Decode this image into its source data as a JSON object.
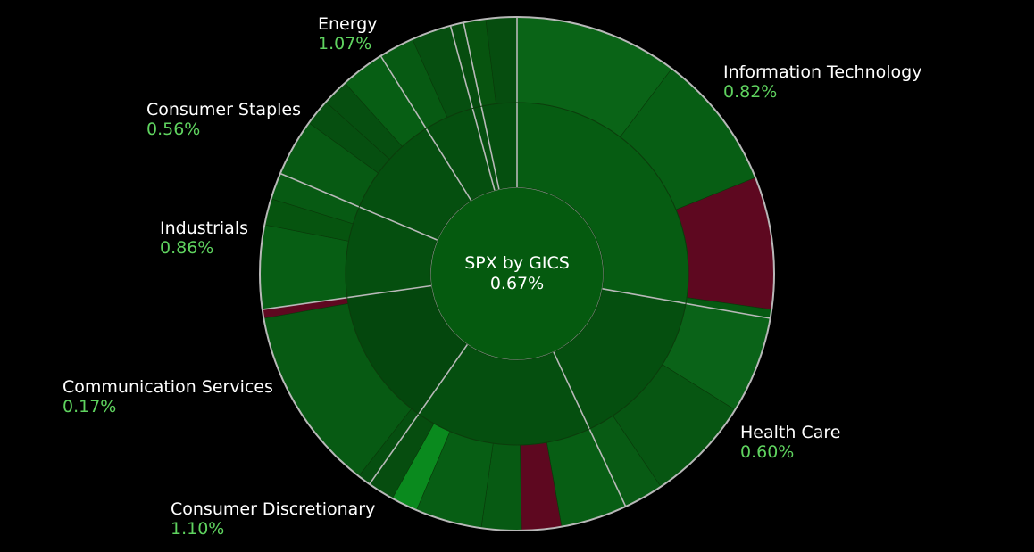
{
  "chart_data": {
    "type": "sunburst",
    "center": {
      "title": "SPX by GICS",
      "value": "0.67%"
    },
    "colors": {
      "background": "#000000",
      "divider": "#b8b8b8",
      "label_text": "#ffffff",
      "positive_text": "#5fd35f",
      "center_fill": "#055a0f",
      "negative_fill": "#5e0820",
      "strong_positive_fill": "#0a8a1e"
    },
    "sectors": [
      {
        "name": "Information Technology",
        "change": "0.82%",
        "start_deg": 0,
        "end_deg": 100,
        "color": "#065c12",
        "children": [
          {
            "start_deg": 0,
            "end_deg": 37,
            "color": "#0a6417"
          },
          {
            "start_deg": 37,
            "end_deg": 68,
            "color": "#075e14"
          },
          {
            "start_deg": 68,
            "end_deg": 98,
            "color": "#5e0820"
          },
          {
            "start_deg": 98,
            "end_deg": 100,
            "color": "#065a12"
          }
        ]
      },
      {
        "name": "Health Care",
        "change": "0.60%",
        "start_deg": 100,
        "end_deg": 155,
        "color": "#054f0f",
        "children": [
          {
            "start_deg": 100,
            "end_deg": 122,
            "color": "#0a6318"
          },
          {
            "start_deg": 122,
            "end_deg": 146,
            "color": "#075612"
          },
          {
            "start_deg": 146,
            "end_deg": 155,
            "color": "#085b14"
          }
        ]
      },
      {
        "name": "Consumer Discretionary",
        "change": "1.10%",
        "start_deg": 155,
        "end_deg": 215,
        "color": "#054f0f",
        "children": [
          {
            "start_deg": 155,
            "end_deg": 170,
            "color": "#075e14"
          },
          {
            "start_deg": 170,
            "end_deg": 179,
            "color": "#5e0820"
          },
          {
            "start_deg": 179,
            "end_deg": 188,
            "color": "#075a13"
          },
          {
            "start_deg": 188,
            "end_deg": 203,
            "color": "#075e14"
          },
          {
            "start_deg": 203,
            "end_deg": 209,
            "color": "#0a8a1e"
          },
          {
            "start_deg": 209,
            "end_deg": 215,
            "color": "#064d0f"
          }
        ]
      },
      {
        "name": "Communication Services",
        "change": "0.17%",
        "start_deg": 215,
        "end_deg": 262,
        "color": "#04470d",
        "children": [
          {
            "start_deg": 215,
            "end_deg": 218,
            "color": "#064f10"
          },
          {
            "start_deg": 218,
            "end_deg": 260,
            "color": "#075a13"
          },
          {
            "start_deg": 260,
            "end_deg": 262,
            "color": "#5e0820"
          }
        ]
      },
      {
        "name": "Industrials",
        "change": "0.86%",
        "start_deg": 262,
        "end_deg": 293,
        "color": "#054f0f",
        "children": [
          {
            "start_deg": 262,
            "end_deg": 281,
            "color": "#075e14"
          },
          {
            "start_deg": 281,
            "end_deg": 287,
            "color": "#06540f"
          },
          {
            "start_deg": 287,
            "end_deg": 293,
            "color": "#075a13"
          }
        ]
      },
      {
        "name": "Consumer Staples",
        "change": "0.56%",
        "start_deg": 293,
        "end_deg": 328,
        "color": "#054f0f",
        "children": [
          {
            "start_deg": 293,
            "end_deg": 306,
            "color": "#075a13"
          },
          {
            "start_deg": 306,
            "end_deg": 312,
            "color": "#064f10"
          },
          {
            "start_deg": 312,
            "end_deg": 318,
            "color": "#064f10"
          },
          {
            "start_deg": 318,
            "end_deg": 328,
            "color": "#075e14"
          }
        ]
      },
      {
        "name": "Energy",
        "change": "1.07%",
        "start_deg": 328,
        "end_deg": 345,
        "color": "#054f0f",
        "children": [
          {
            "start_deg": 328,
            "end_deg": 336,
            "color": "#075a13"
          },
          {
            "start_deg": 336,
            "end_deg": 345,
            "color": "#064f10"
          }
        ]
      },
      {
        "name": "",
        "change": "",
        "start_deg": 345,
        "end_deg": 348,
        "color": "#054f0f",
        "children": [
          {
            "start_deg": 345,
            "end_deg": 348,
            "color": "#064d0f"
          }
        ]
      },
      {
        "name": "",
        "change": "",
        "start_deg": 348,
        "end_deg": 360,
        "color": "#054f0f",
        "children": [
          {
            "start_deg": 348,
            "end_deg": 353,
            "color": "#07540f"
          },
          {
            "start_deg": 353,
            "end_deg": 360,
            "color": "#064d0f"
          }
        ]
      }
    ]
  }
}
